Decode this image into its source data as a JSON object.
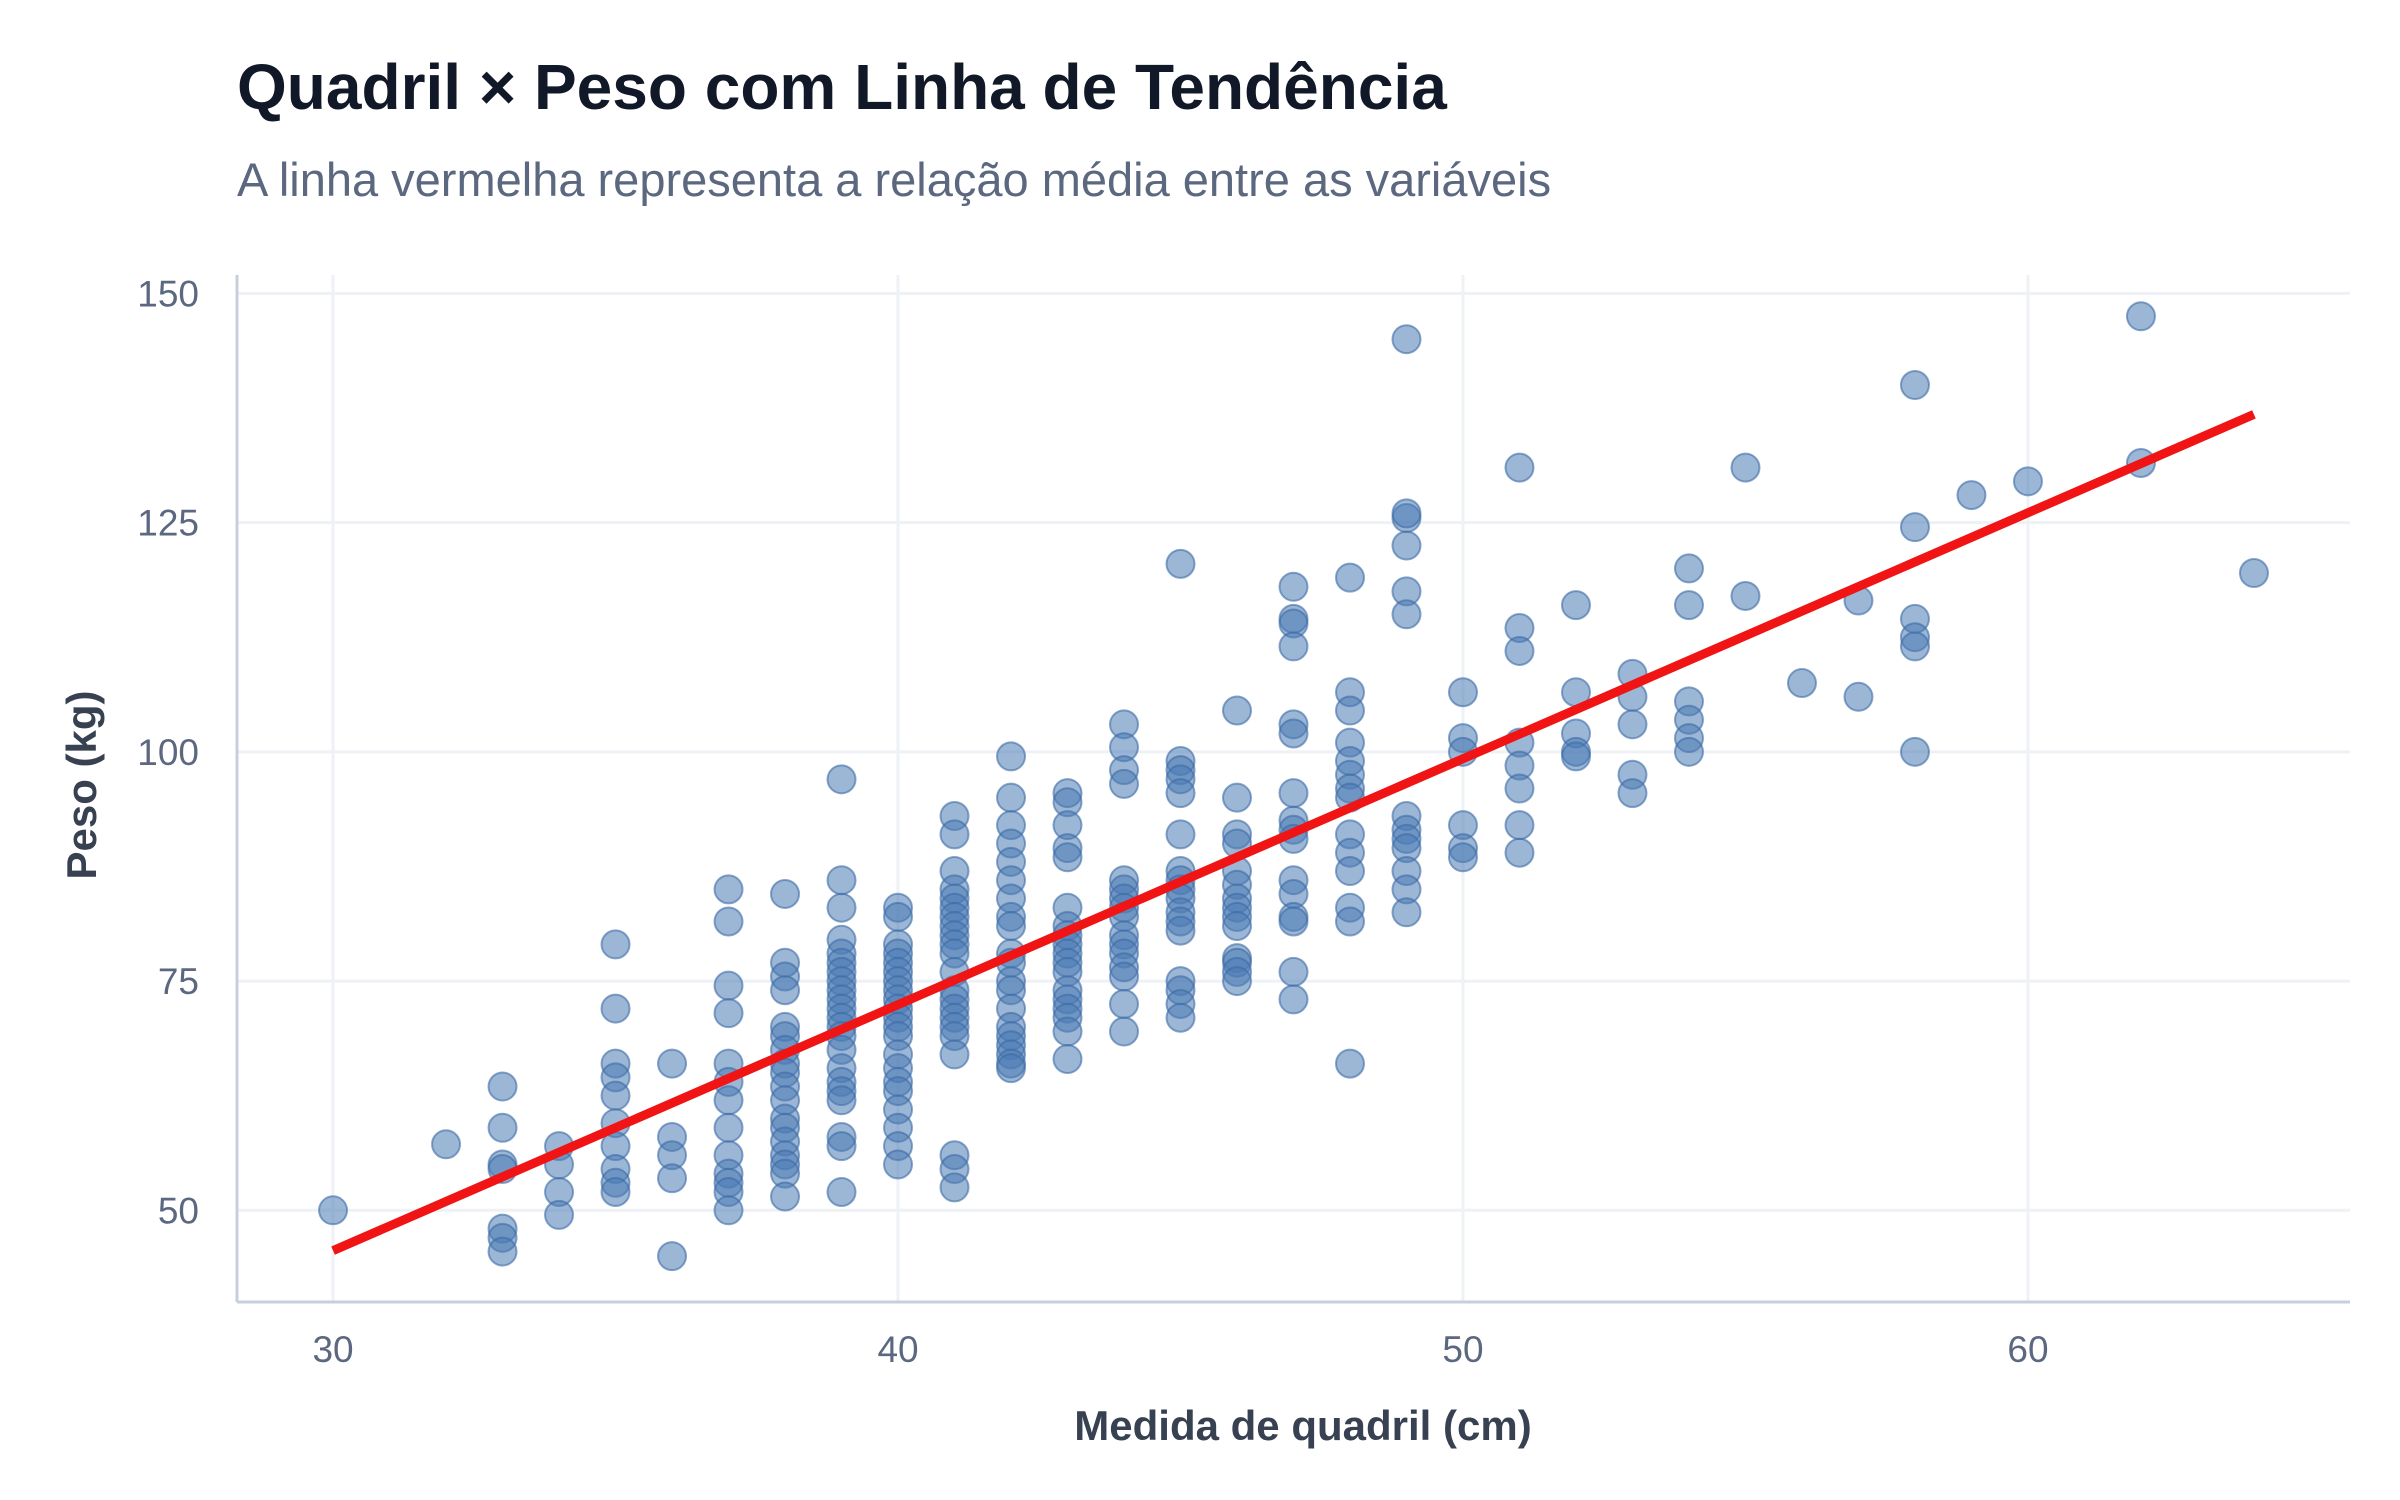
{
  "chart_data": {
    "type": "scatter",
    "title": "Quadril × Peso com Linha de Tendência",
    "subtitle": "A linha vermelha representa a relação média entre as variáveis",
    "xlabel": "Medida de quadril (cm)",
    "ylabel": "Peso (kg)",
    "xlim": [
      28.3,
      65.7
    ],
    "ylim": [
      40,
      152
    ],
    "xticks": [
      30,
      40,
      50,
      60
    ],
    "yticks": [
      50,
      75,
      100,
      125,
      150
    ],
    "grid": true,
    "legend": "none",
    "colors": {
      "points": "#4a7ab5",
      "trend_line": "#f01414"
    },
    "trend_line": {
      "x": [
        30,
        64
      ],
      "y": [
        45.6,
        136.8
      ]
    },
    "points": [
      [
        30,
        50
      ],
      [
        32,
        57.2
      ],
      [
        33,
        63.5
      ],
      [
        33,
        59
      ],
      [
        33,
        55
      ],
      [
        33,
        54.5
      ],
      [
        33,
        48
      ],
      [
        33,
        47
      ],
      [
        33,
        45.5
      ],
      [
        34,
        57
      ],
      [
        34,
        55
      ],
      [
        34,
        52
      ],
      [
        34,
        49.5
      ],
      [
        35,
        79
      ],
      [
        35,
        72
      ],
      [
        35,
        66
      ],
      [
        35,
        64.5
      ],
      [
        35,
        62.5
      ],
      [
        35,
        59.5
      ],
      [
        35,
        57
      ],
      [
        35,
        54.5
      ],
      [
        35,
        53
      ],
      [
        35,
        52
      ],
      [
        36,
        66
      ],
      [
        36,
        58
      ],
      [
        36,
        56
      ],
      [
        36,
        53.5
      ],
      [
        36,
        45
      ],
      [
        37,
        85
      ],
      [
        37,
        81.5
      ],
      [
        37,
        74.5
      ],
      [
        37,
        71.5
      ],
      [
        37,
        66
      ],
      [
        37,
        64
      ],
      [
        37,
        62
      ],
      [
        37,
        59
      ],
      [
        37,
        56
      ],
      [
        37,
        54
      ],
      [
        37,
        53
      ],
      [
        37,
        52
      ],
      [
        37,
        50
      ],
      [
        38,
        84.5
      ],
      [
        38,
        77
      ],
      [
        38,
        75.5
      ],
      [
        38,
        74
      ],
      [
        38,
        70
      ],
      [
        38,
        69
      ],
      [
        38,
        67.5
      ],
      [
        38,
        66
      ],
      [
        38,
        65
      ],
      [
        38,
        63.5
      ],
      [
        38,
        62
      ],
      [
        38,
        60
      ],
      [
        38,
        59
      ],
      [
        38,
        57.5
      ],
      [
        38,
        56
      ],
      [
        38,
        55
      ],
      [
        38,
        54
      ],
      [
        38,
        51.5
      ],
      [
        39,
        97
      ],
      [
        39,
        86
      ],
      [
        39,
        83
      ],
      [
        39,
        79.5
      ],
      [
        39,
        78
      ],
      [
        39,
        77
      ],
      [
        39,
        76
      ],
      [
        39,
        75
      ],
      [
        39,
        74
      ],
      [
        39,
        73
      ],
      [
        39,
        72
      ],
      [
        39,
        71
      ],
      [
        39,
        70
      ],
      [
        39,
        69
      ],
      [
        39,
        67.5
      ],
      [
        39,
        65.5
      ],
      [
        39,
        64
      ],
      [
        39,
        63
      ],
      [
        39,
        62
      ],
      [
        39,
        58
      ],
      [
        39,
        57
      ],
      [
        39,
        52
      ],
      [
        40,
        83
      ],
      [
        40,
        82
      ],
      [
        40,
        79
      ],
      [
        40,
        78
      ],
      [
        40,
        77
      ],
      [
        40,
        76
      ],
      [
        40,
        75
      ],
      [
        40,
        74
      ],
      [
        40,
        73
      ],
      [
        40,
        72
      ],
      [
        40,
        71
      ],
      [
        40,
        70
      ],
      [
        40,
        69
      ],
      [
        40,
        67
      ],
      [
        40,
        65.5
      ],
      [
        40,
        64
      ],
      [
        40,
        63
      ],
      [
        40,
        61
      ],
      [
        40,
        59
      ],
      [
        40,
        57
      ],
      [
        40,
        55
      ],
      [
        41,
        93
      ],
      [
        41,
        91
      ],
      [
        41,
        87
      ],
      [
        41,
        85
      ],
      [
        41,
        84
      ],
      [
        41,
        83
      ],
      [
        41,
        82
      ],
      [
        41,
        81
      ],
      [
        41,
        80
      ],
      [
        41,
        79
      ],
      [
        41,
        78
      ],
      [
        41,
        76
      ],
      [
        41,
        74
      ],
      [
        41,
        73
      ],
      [
        41,
        72
      ],
      [
        41,
        71
      ],
      [
        41,
        70
      ],
      [
        41,
        69
      ],
      [
        41,
        67
      ],
      [
        41,
        56
      ],
      [
        41,
        54.5
      ],
      [
        41,
        52.5
      ],
      [
        42,
        99.5
      ],
      [
        42,
        95
      ],
      [
        42,
        92
      ],
      [
        42,
        90
      ],
      [
        42,
        88
      ],
      [
        42,
        86
      ],
      [
        42,
        84
      ],
      [
        42,
        82
      ],
      [
        42,
        81
      ],
      [
        42,
        78
      ],
      [
        42,
        77
      ],
      [
        42,
        75
      ],
      [
        42,
        74
      ],
      [
        42,
        72
      ],
      [
        42,
        70
      ],
      [
        42,
        69
      ],
      [
        42,
        68
      ],
      [
        42,
        67
      ],
      [
        42,
        66
      ],
      [
        42,
        65.5
      ],
      [
        43,
        95.5
      ],
      [
        43,
        94.5
      ],
      [
        43,
        92
      ],
      [
        43,
        89.5
      ],
      [
        43,
        88.5
      ],
      [
        43,
        83
      ],
      [
        43,
        81
      ],
      [
        43,
        80
      ],
      [
        43,
        79
      ],
      [
        43,
        78
      ],
      [
        43,
        77
      ],
      [
        43,
        76
      ],
      [
        43,
        74
      ],
      [
        43,
        73
      ],
      [
        43,
        72
      ],
      [
        43,
        71
      ],
      [
        43,
        69.5
      ],
      [
        43,
        66.5
      ],
      [
        44,
        103
      ],
      [
        44,
        100.5
      ],
      [
        44,
        98
      ],
      [
        44,
        96.5
      ],
      [
        44,
        86
      ],
      [
        44,
        85
      ],
      [
        44,
        84
      ],
      [
        44,
        83
      ],
      [
        44,
        82
      ],
      [
        44,
        80
      ],
      [
        44,
        79
      ],
      [
        44,
        78
      ],
      [
        44,
        76.5
      ],
      [
        44,
        75.5
      ],
      [
        44,
        72.5
      ],
      [
        44,
        69.5
      ],
      [
        45,
        120.5
      ],
      [
        45,
        99
      ],
      [
        45,
        98
      ],
      [
        45,
        97
      ],
      [
        45,
        95.5
      ],
      [
        45,
        91
      ],
      [
        45,
        87
      ],
      [
        45,
        86
      ],
      [
        45,
        85
      ],
      [
        45,
        84
      ],
      [
        45,
        82.5
      ],
      [
        45,
        81.5
      ],
      [
        45,
        80.5
      ],
      [
        45,
        75
      ],
      [
        45,
        74
      ],
      [
        45,
        72.5
      ],
      [
        45,
        71
      ],
      [
        46,
        104.5
      ],
      [
        46,
        95
      ],
      [
        46,
        91
      ],
      [
        46,
        90
      ],
      [
        46,
        87
      ],
      [
        46,
        85.5
      ],
      [
        46,
        84
      ],
      [
        46,
        83
      ],
      [
        46,
        82
      ],
      [
        46,
        81
      ],
      [
        46,
        77.5
      ],
      [
        46,
        77
      ],
      [
        46,
        76
      ],
      [
        46,
        75
      ],
      [
        47,
        118
      ],
      [
        47,
        114.5
      ],
      [
        47,
        114
      ],
      [
        47,
        111.5
      ],
      [
        47,
        103
      ],
      [
        47,
        102
      ],
      [
        47,
        95.5
      ],
      [
        47,
        92.5
      ],
      [
        47,
        91.5
      ],
      [
        47,
        90.5
      ],
      [
        47,
        86
      ],
      [
        47,
        84.5
      ],
      [
        47,
        82
      ],
      [
        47,
        81.5
      ],
      [
        47,
        76
      ],
      [
        47,
        73
      ],
      [
        48,
        119
      ],
      [
        48,
        106.5
      ],
      [
        48,
        104.5
      ],
      [
        48,
        101
      ],
      [
        48,
        99
      ],
      [
        48,
        97.5
      ],
      [
        48,
        96
      ],
      [
        48,
        95
      ],
      [
        48,
        91
      ],
      [
        48,
        89
      ],
      [
        48,
        87
      ],
      [
        48,
        83
      ],
      [
        48,
        81.5
      ],
      [
        48,
        66
      ],
      [
        49,
        145
      ],
      [
        49,
        125.5
      ],
      [
        49,
        126
      ],
      [
        49,
        122.5
      ],
      [
        49,
        117.5
      ],
      [
        49,
        115
      ],
      [
        49,
        93
      ],
      [
        49,
        91.5
      ],
      [
        49,
        90.5
      ],
      [
        49,
        89.5
      ],
      [
        49,
        87
      ],
      [
        49,
        85
      ],
      [
        49,
        82.5
      ],
      [
        50,
        106.5
      ],
      [
        50,
        101.5
      ],
      [
        50,
        100
      ],
      [
        50,
        92
      ],
      [
        50,
        89.5
      ],
      [
        50,
        88.5
      ],
      [
        51,
        131
      ],
      [
        51,
        113.5
      ],
      [
        51,
        111
      ],
      [
        51,
        101
      ],
      [
        51,
        98.5
      ],
      [
        51,
        96
      ],
      [
        51,
        92
      ],
      [
        51,
        89
      ],
      [
        52,
        116
      ],
      [
        52,
        106.5
      ],
      [
        52,
        102
      ],
      [
        52,
        100
      ],
      [
        52,
        99.5
      ],
      [
        53,
        108.5
      ],
      [
        53,
        106
      ],
      [
        53,
        103
      ],
      [
        53,
        97.5
      ],
      [
        53,
        95.5
      ],
      [
        54,
        120
      ],
      [
        54,
        116
      ],
      [
        54,
        105.5
      ],
      [
        54,
        103.5
      ],
      [
        54,
        101.5
      ],
      [
        54,
        100
      ],
      [
        55,
        131
      ],
      [
        55,
        117
      ],
      [
        56,
        107.5
      ],
      [
        57,
        116.5
      ],
      [
        57,
        106
      ],
      [
        58,
        140
      ],
      [
        58,
        124.5
      ],
      [
        58,
        114.5
      ],
      [
        58,
        112.5
      ],
      [
        58,
        111.5
      ],
      [
        58,
        100
      ],
      [
        59,
        128
      ],
      [
        60,
        129.5
      ],
      [
        62,
        147.5
      ],
      [
        62,
        131.5
      ],
      [
        64,
        119.5
      ]
    ]
  }
}
